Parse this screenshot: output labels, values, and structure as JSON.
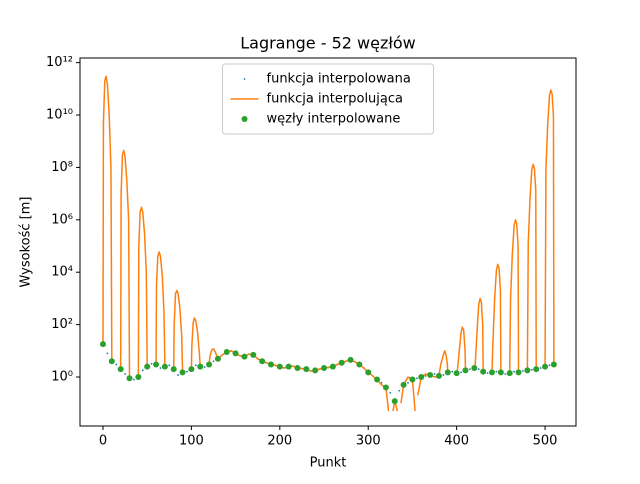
{
  "chart_data": {
    "type": "line",
    "title": "Lagrange - 52 węzłów",
    "x_label": "Punkt",
    "y_label": "Wysokość [m]",
    "log_y": true,
    "legend": "upper center",
    "xlim": [
      -26,
      535
    ],
    "xticks": [
      0,
      100,
      200,
      300,
      400,
      500
    ],
    "ylim": [
      0.0135,
      1500000000000.0
    ],
    "yticks": [
      {
        "value": 1,
        "label": "10⁰"
      },
      {
        "value": 100,
        "label": "10²"
      },
      {
        "value": 10000,
        "label": "10⁴"
      },
      {
        "value": 1000000,
        "label": "10⁶"
      },
      {
        "value": 100000000,
        "label": "10⁸"
      },
      {
        "value": 10000000000,
        "label": "10¹⁰"
      },
      {
        "value": 1000000000000,
        "label": "10¹²"
      }
    ],
    "series": [
      {
        "name": "funkcja interpolowana",
        "color": "#1f77b4",
        "style": "points",
        "x": [
          0,
          5,
          10,
          15,
          20,
          25,
          30,
          35,
          40,
          45,
          50,
          55,
          60,
          65,
          70,
          75,
          80,
          85,
          90,
          95,
          100,
          105,
          110,
          115,
          120,
          125,
          130,
          135,
          140,
          145,
          150,
          155,
          160,
          165,
          170,
          175,
          180,
          185,
          190,
          195,
          200,
          205,
          210,
          215,
          220,
          225,
          230,
          235,
          240,
          245,
          250,
          255,
          260,
          265,
          270,
          275,
          280,
          285,
          290,
          295,
          300,
          305,
          310,
          315,
          320,
          325,
          330,
          335,
          340,
          345,
          350,
          355,
          360,
          365,
          370,
          375,
          380,
          385,
          390,
          395,
          400,
          405,
          410,
          415,
          420,
          425,
          430,
          435,
          440,
          445,
          450,
          455,
          460,
          465,
          470,
          475,
          480,
          485,
          490,
          495,
          500,
          505,
          510
        ],
        "values": [
          18,
          8,
          4,
          3,
          2,
          1.3,
          0.9,
          0.8,
          1,
          1.8,
          2.5,
          3.2,
          3,
          2.2,
          2.5,
          2.8,
          2,
          1.2,
          1.5,
          1.6,
          2,
          2.8,
          2.5,
          2.4,
          3,
          4,
          5,
          7,
          9,
          10,
          8,
          6.5,
          6,
          7.5,
          7,
          5,
          4,
          3.5,
          3,
          2.8,
          2.5,
          2.2,
          2.5,
          2.6,
          2.2,
          2.1,
          2,
          1.7,
          1.8,
          2,
          2.2,
          2.3,
          2.5,
          3,
          3.5,
          4,
          4.5,
          3.8,
          3,
          2.2,
          1.5,
          1.1,
          0.8,
          0.6,
          0.4,
          0.25,
          0.12,
          0.3,
          0.5,
          0.6,
          0.8,
          0.9,
          1,
          1.1,
          1.2,
          1.3,
          1.1,
          1.2,
          1.5,
          1.6,
          1.4,
          1.5,
          1.8,
          2,
          2.2,
          2,
          1.6,
          1.4,
          1.5,
          1.6,
          1.5,
          1.3,
          1.4,
          1.6,
          1.5,
          1.7,
          1.8,
          1.9,
          2,
          2.2,
          2.5,
          2.8,
          3
        ]
      },
      {
        "name": "funkcja interpolująca",
        "color": "#ff7f0e",
        "style": "line",
        "x": [
          0,
          0.5,
          2,
          3.5,
          5,
          7,
          9,
          10,
          null,
          20,
          20.5,
          22,
          23.5,
          25,
          27,
          29,
          30,
          null,
          40,
          40.5,
          42,
          43.5,
          45,
          47,
          49,
          50,
          null,
          60,
          60.5,
          62,
          63.5,
          65,
          67,
          69,
          70,
          null,
          80,
          80.5,
          82,
          83.5,
          85,
          87,
          89,
          90,
          null,
          100,
          100.5,
          102,
          103.5,
          105,
          107,
          109,
          110,
          null,
          120,
          121,
          123,
          125,
          127,
          129,
          130,
          135,
          140,
          145,
          150,
          155,
          160,
          165,
          170,
          175,
          180,
          185,
          190,
          195,
          200,
          205,
          210,
          215,
          220,
          225,
          230,
          235,
          240,
          245,
          250,
          255,
          260,
          265,
          270,
          275,
          280,
          285,
          290,
          295,
          300,
          305,
          310,
          315,
          320,
          323,
          null,
          328,
          330,
          333,
          null,
          337,
          340,
          345,
          350,
          353,
          null,
          356,
          360,
          365,
          370,
          375,
          380,
          382,
          385,
          386.5,
          388,
          389.5,
          390,
          null,
          400,
          401,
          403,
          405,
          406.5,
          408,
          409.5,
          410,
          null,
          420,
          421,
          423,
          425,
          426.5,
          428,
          429.5,
          430,
          null,
          440,
          441,
          443,
          445,
          446.5,
          448,
          449.5,
          450,
          null,
          460,
          461,
          463,
          465,
          466.5,
          468,
          469.5,
          470,
          null,
          480,
          481,
          483,
          485,
          486.5,
          488,
          489.5,
          490,
          null,
          500,
          501,
          503,
          505,
          506.5,
          508,
          509.5,
          510
        ],
        "values": [
          18,
          5000000000.0,
          200000000000.0,
          300000000000.0,
          150000000000.0,
          10000000000.0,
          100000000.0,
          4,
          null,
          2,
          10000000.0,
          300000000.0,
          450000000.0,
          250000000.0,
          30000000.0,
          1000000.0,
          0.9,
          null,
          1,
          100000.0,
          2000000.0,
          3000000.0,
          2000000.0,
          300000.0,
          10000.0,
          2.5,
          null,
          3,
          3000,
          40000.0,
          60000.0,
          40000.0,
          8000,
          300,
          2.5,
          null,
          2,
          100,
          1500,
          2000,
          1500,
          400,
          40,
          1.5,
          null,
          2,
          15,
          120,
          180,
          140,
          50,
          8,
          2.5,
          null,
          3,
          6,
          11,
          12,
          9,
          6,
          5,
          7,
          9,
          10,
          8,
          6.5,
          6,
          7.5,
          7,
          5,
          4,
          3.5,
          3,
          2.8,
          2.5,
          2.2,
          2.5,
          2.6,
          2.2,
          2.1,
          2,
          1.7,
          1.8,
          2,
          2.2,
          2.3,
          2.5,
          3,
          3.5,
          4,
          4.5,
          3.8,
          3,
          2.2,
          1.5,
          1.1,
          0.8,
          0.5,
          0.4,
          0.05,
          null,
          0.05,
          0.12,
          0.05,
          null,
          0.1,
          0.5,
          1,
          0.8,
          0.05,
          null,
          0.2,
          1,
          1.3,
          1.2,
          1,
          1.1,
          3,
          7,
          10,
          7,
          3,
          1.5,
          null,
          1.4,
          2,
          10,
          50,
          80,
          60,
          10,
          1.8,
          null,
          2.2,
          3,
          50,
          600,
          1000,
          700,
          100,
          1.6,
          null,
          1.5,
          20,
          1000,
          12000,
          20000,
          14000,
          2000,
          1.5,
          null,
          1.4,
          1000,
          50000,
          600000,
          1000000,
          700000,
          100000,
          1.5,
          null,
          1.8,
          130000,
          6500000,
          80000000,
          130000000,
          90000000,
          13000000,
          2,
          null,
          2.5,
          90000000,
          4500000000,
          54000000000,
          90000000000,
          63000000000,
          9000000000,
          3
        ]
      },
      {
        "name": "węzły interpolowane",
        "color": "#2ca02c",
        "style": "markers",
        "x": [
          0,
          10,
          20,
          30,
          40,
          50,
          60,
          70,
          80,
          90,
          100,
          110,
          120,
          130,
          140,
          150,
          160,
          170,
          180,
          190,
          200,
          210,
          220,
          230,
          240,
          250,
          260,
          270,
          280,
          290,
          300,
          310,
          320,
          330,
          340,
          350,
          360,
          370,
          380,
          390,
          400,
          410,
          420,
          430,
          440,
          450,
          460,
          470,
          480,
          490,
          500,
          510
        ],
        "values": [
          18,
          4,
          2,
          0.9,
          1,
          2.5,
          3,
          2.5,
          2,
          1.5,
          2,
          2.5,
          3,
          5,
          9,
          8,
          6,
          7,
          4,
          3,
          2.5,
          2.5,
          2.2,
          2,
          1.8,
          2.2,
          2.5,
          3.5,
          4.5,
          3,
          1.5,
          0.8,
          0.4,
          0.12,
          0.5,
          0.8,
          1,
          1.2,
          1.1,
          1.5,
          1.4,
          1.8,
          2.2,
          1.6,
          1.5,
          1.5,
          1.4,
          1.5,
          1.8,
          2,
          2.5,
          3
        ]
      }
    ]
  }
}
